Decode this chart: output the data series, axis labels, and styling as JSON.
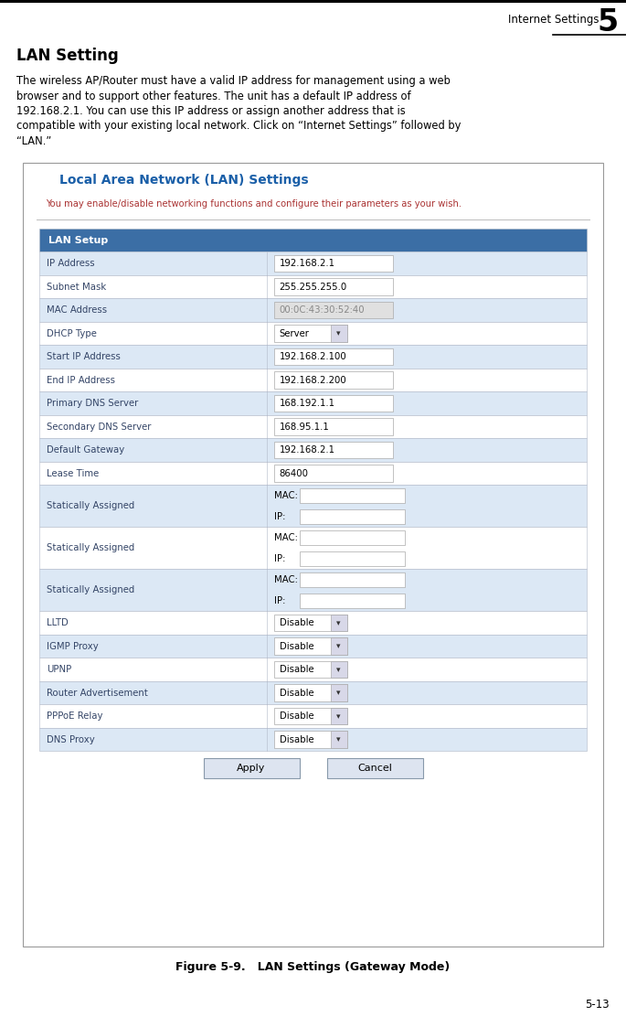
{
  "page_header": "Internet Settings",
  "page_number": "5",
  "section_title": "LAN Setting",
  "body_text_lines": [
    "The wireless AP/Router must have a valid IP address for management using a web",
    "browser and to support other features. The unit has a default IP address of",
    "192.168.2.1. You can use this IP address or assign another address that is",
    "compatible with your existing local network. Click on “Internet Settings” followed by",
    "“LAN.”"
  ],
  "figure_caption": "Figure 5-9.   LAN Settings (Gateway Mode)",
  "page_footer": "5-13",
  "box_title": "Local Area Network (LAN) Settings",
  "box_subtitle": "You may enable/disable networking functions and configure their parameters as your wish.",
  "table_header": "LAN Setup",
  "table_header_bg": "#3b6ea5",
  "table_header_color": "#ffffff",
  "row_bg_light": "#dce8f5",
  "row_bg_white": "#ffffff",
  "border_color": "#b0b8c8",
  "box_border_color": "#999999",
  "rows": [
    {
      "label": "IP Address",
      "value": "192.168.2.1",
      "type": "input"
    },
    {
      "label": "Subnet Mask",
      "value": "255.255.255.0",
      "type": "input"
    },
    {
      "label": "MAC Address",
      "value": "00:0C:43:30:52:40",
      "type": "input_disabled"
    },
    {
      "label": "DHCP Type",
      "value": "Server",
      "type": "dropdown"
    },
    {
      "label": "Start IP Address",
      "value": "192.168.2.100",
      "type": "input"
    },
    {
      "label": "End IP Address",
      "value": "192.168.2.200",
      "type": "input"
    },
    {
      "label": "Primary DNS Server",
      "value": "168.192.1.1",
      "type": "input"
    },
    {
      "label": "Secondary DNS Server",
      "value": "168.95.1.1",
      "type": "input"
    },
    {
      "label": "Default Gateway",
      "value": "192.168.2.1",
      "type": "input"
    },
    {
      "label": "Lease Time",
      "value": "86400",
      "type": "input"
    },
    {
      "label": "Statically Assigned",
      "value": "",
      "type": "mac_ip"
    },
    {
      "label": "Statically Assigned",
      "value": "",
      "type": "mac_ip"
    },
    {
      "label": "Statically Assigned",
      "value": "",
      "type": "mac_ip"
    },
    {
      "label": "LLTD",
      "value": "Disable",
      "type": "dropdown"
    },
    {
      "label": "IGMP Proxy",
      "value": "Disable",
      "type": "dropdown"
    },
    {
      "label": "UPNP",
      "value": "Disable",
      "type": "dropdown"
    },
    {
      "label": "Router Advertisement",
      "value": "Disable",
      "type": "dropdown"
    },
    {
      "label": "PPPoE Relay",
      "value": "Disable",
      "type": "dropdown"
    },
    {
      "label": "DNS Proxy",
      "value": "Disable",
      "type": "dropdown"
    }
  ],
  "input_bg": "#ffffff",
  "input_disabled_bg": "#e0e0e0",
  "input_disabled_text": "#888888",
  "input_border": "#aaaaaa",
  "label_color": "#334466",
  "box_title_color": "#1a5fa8",
  "box_subtitle_color": "#aa3333",
  "dropdown_bg": "#ffffff",
  "dropdown_btn_bg": "#d8d8e8",
  "button_bg": "#dde4f0",
  "button_border": "#8899aa",
  "bg_color": "#ffffff"
}
